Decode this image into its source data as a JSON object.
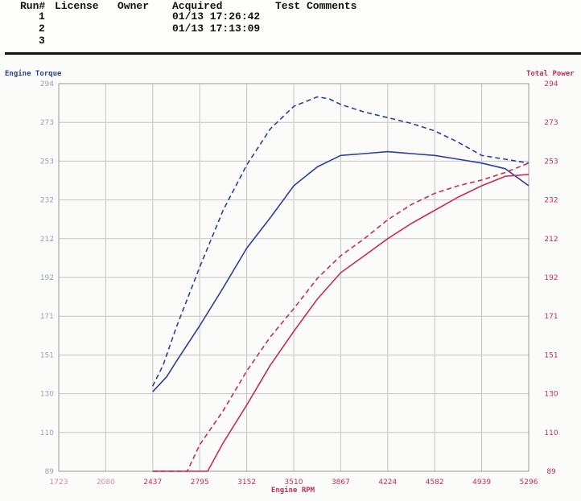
{
  "header": {
    "columns": [
      "Run#",
      "License",
      "Owner",
      "Acquired",
      "Test Comments"
    ],
    "rows": [
      {
        "run": "1",
        "acquired": "01/13 17:26:42"
      },
      {
        "run": "2",
        "acquired": "01/13 17:13:09"
      },
      {
        "run": "3",
        "acquired": ""
      }
    ]
  },
  "chart_data": {
    "type": "line",
    "xlabel": "Engine RPM",
    "ylabel_left": "Engine Torque",
    "ylabel_right": "Total Power",
    "x_ticks": [
      "1723",
      "2080",
      "2437",
      "2795",
      "3152",
      "3510",
      "3867",
      "4224",
      "4582",
      "4939",
      "5296"
    ],
    "y_left_ticks": [
      "89",
      "110",
      "130",
      "151",
      "171",
      "192",
      "212",
      "232",
      "253",
      "273",
      "294"
    ],
    "y_right_ticks": [
      "89",
      "110",
      "130",
      "151",
      "171",
      "192",
      "212",
      "232",
      "253",
      "273",
      "294"
    ],
    "xlim": [
      1723,
      5296
    ],
    "ylim_left": [
      89,
      294
    ],
    "ylim_right": [
      89,
      294
    ],
    "grid": true,
    "colors": {
      "torque": "#2d3f9e",
      "power": "#cc2b52",
      "grid": "#c4c4c4"
    },
    "series": [
      {
        "axis": "left",
        "style": "dashed",
        "color": "#2d3f9e",
        "x": [
          2437,
          2516,
          2616,
          2795,
          2973,
          3152,
          3331,
          3510,
          3689,
          3778,
          3867,
          4046,
          4224,
          4403,
          4582,
          4760,
          4939,
          5118,
          5296
        ],
        "y": [
          134,
          145,
          165,
          197,
          227,
          251,
          270,
          282,
          287,
          286,
          283,
          279,
          276,
          273,
          269,
          263,
          256,
          254,
          252
        ]
      },
      {
        "axis": "left",
        "style": "solid",
        "color": "#2d3f9e",
        "x": [
          2437,
          2544,
          2616,
          2795,
          2973,
          3152,
          3331,
          3510,
          3689,
          3867,
          4046,
          4224,
          4403,
          4582,
          4760,
          4939,
          5118,
          5296
        ],
        "y": [
          131,
          139,
          147,
          166,
          186,
          207,
          223,
          240,
          250,
          256,
          257,
          258,
          257,
          256,
          254,
          252,
          249,
          240
        ]
      },
      {
        "axis": "right",
        "style": "dashed",
        "color": "#cc2b52",
        "x": [
          2437,
          2700,
          2795,
          2973,
          3152,
          3331,
          3510,
          3689,
          3867,
          4046,
          4224,
          4403,
          4582,
          4760,
          4939,
          5118,
          5296
        ],
        "y": [
          89,
          89,
          103,
          121,
          142,
          160,
          175,
          191,
          203,
          212,
          222,
          230,
          236,
          240,
          243,
          247,
          252
        ]
      },
      {
        "axis": "right",
        "style": "solid",
        "color": "#cc2b52",
        "x": [
          2437,
          2855,
          2973,
          3152,
          3331,
          3510,
          3689,
          3867,
          4046,
          4224,
          4403,
          4582,
          4760,
          4939,
          5118,
          5296
        ],
        "y": [
          89,
          89,
          104,
          124,
          145,
          163,
          180,
          194,
          203,
          212,
          220,
          227,
          234,
          240,
          245,
          246
        ]
      }
    ]
  }
}
